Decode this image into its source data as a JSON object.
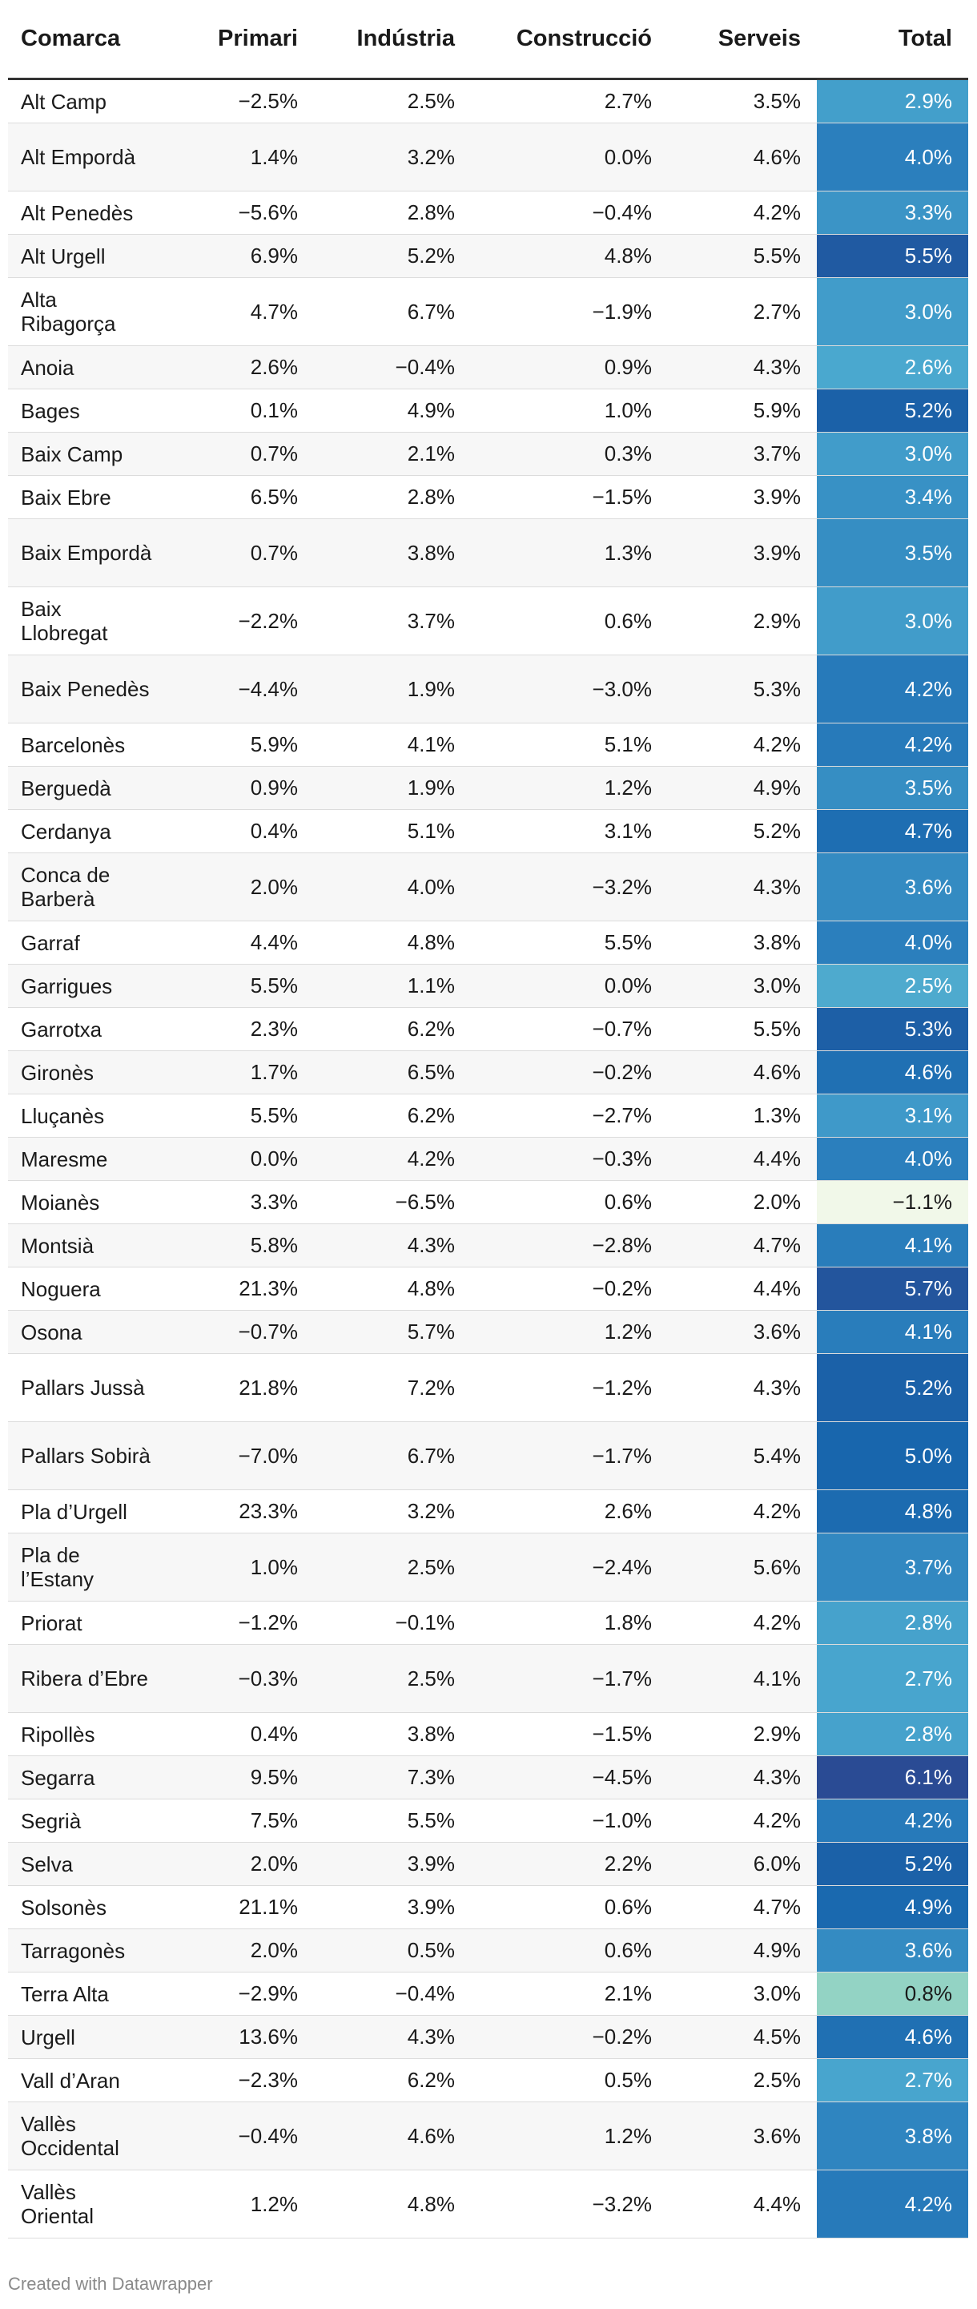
{
  "chart_data": {
    "type": "table",
    "columns": [
      "Comarca",
      "Primari",
      "Indústria",
      "Construcció",
      "Serveis",
      "Total"
    ],
    "rows": [
      {
        "comarca": "Alt Camp",
        "primari": "−2.5%",
        "industria": "2.5%",
        "construccio": "2.7%",
        "serveis": "3.5%",
        "total": "2.9%",
        "total_value": 2.9
      },
      {
        "comarca": "Alt Empordà",
        "primari": "1.4%",
        "industria": "3.2%",
        "construccio": "0.0%",
        "serveis": "4.6%",
        "total": "4.0%",
        "total_value": 4.0
      },
      {
        "comarca": "Alt Penedès",
        "primari": "−5.6%",
        "industria": "2.8%",
        "construccio": "−0.4%",
        "serveis": "4.2%",
        "total": "3.3%",
        "total_value": 3.3
      },
      {
        "comarca": "Alt Urgell",
        "primari": "6.9%",
        "industria": "5.2%",
        "construccio": "4.8%",
        "serveis": "5.5%",
        "total": "5.5%",
        "total_value": 5.5
      },
      {
        "comarca": "Alta Ribagorça",
        "primari": "4.7%",
        "industria": "6.7%",
        "construccio": "−1.9%",
        "serveis": "2.7%",
        "total": "3.0%",
        "total_value": 3.0
      },
      {
        "comarca": "Anoia",
        "primari": "2.6%",
        "industria": "−0.4%",
        "construccio": "0.9%",
        "serveis": "4.3%",
        "total": "2.6%",
        "total_value": 2.6
      },
      {
        "comarca": "Bages",
        "primari": "0.1%",
        "industria": "4.9%",
        "construccio": "1.0%",
        "serveis": "5.9%",
        "total": "5.2%",
        "total_value": 5.2
      },
      {
        "comarca": "Baix Camp",
        "primari": "0.7%",
        "industria": "2.1%",
        "construccio": "0.3%",
        "serveis": "3.7%",
        "total": "3.0%",
        "total_value": 3.0
      },
      {
        "comarca": "Baix Ebre",
        "primari": "6.5%",
        "industria": "2.8%",
        "construccio": "−1.5%",
        "serveis": "3.9%",
        "total": "3.4%",
        "total_value": 3.4
      },
      {
        "comarca": "Baix Empordà",
        "primari": "0.7%",
        "industria": "3.8%",
        "construccio": "1.3%",
        "serveis": "3.9%",
        "total": "3.5%",
        "total_value": 3.5
      },
      {
        "comarca": "Baix Llobregat",
        "primari": "−2.2%",
        "industria": "3.7%",
        "construccio": "0.6%",
        "serveis": "2.9%",
        "total": "3.0%",
        "total_value": 3.0
      },
      {
        "comarca": "Baix Penedès",
        "primari": "−4.4%",
        "industria": "1.9%",
        "construccio": "−3.0%",
        "serveis": "5.3%",
        "total": "4.2%",
        "total_value": 4.2
      },
      {
        "comarca": "Barcelonès",
        "primari": "5.9%",
        "industria": "4.1%",
        "construccio": "5.1%",
        "serveis": "4.2%",
        "total": "4.2%",
        "total_value": 4.2
      },
      {
        "comarca": "Berguedà",
        "primari": "0.9%",
        "industria": "1.9%",
        "construccio": "1.2%",
        "serveis": "4.9%",
        "total": "3.5%",
        "total_value": 3.5
      },
      {
        "comarca": "Cerdanya",
        "primari": "0.4%",
        "industria": "5.1%",
        "construccio": "3.1%",
        "serveis": "5.2%",
        "total": "4.7%",
        "total_value": 4.7
      },
      {
        "comarca": "Conca de Barberà",
        "primari": "2.0%",
        "industria": "4.0%",
        "construccio": "−3.2%",
        "serveis": "4.3%",
        "total": "3.6%",
        "total_value": 3.6
      },
      {
        "comarca": "Garraf",
        "primari": "4.4%",
        "industria": "4.8%",
        "construccio": "5.5%",
        "serveis": "3.8%",
        "total": "4.0%",
        "total_value": 4.0
      },
      {
        "comarca": "Garrigues",
        "primari": "5.5%",
        "industria": "1.1%",
        "construccio": "0.0%",
        "serveis": "3.0%",
        "total": "2.5%",
        "total_value": 2.5
      },
      {
        "comarca": "Garrotxa",
        "primari": "2.3%",
        "industria": "6.2%",
        "construccio": "−0.7%",
        "serveis": "5.5%",
        "total": "5.3%",
        "total_value": 5.3
      },
      {
        "comarca": "Gironès",
        "primari": "1.7%",
        "industria": "6.5%",
        "construccio": "−0.2%",
        "serveis": "4.6%",
        "total": "4.6%",
        "total_value": 4.6
      },
      {
        "comarca": "Lluçanès",
        "primari": "5.5%",
        "industria": "6.2%",
        "construccio": "−2.7%",
        "serveis": "1.3%",
        "total": "3.1%",
        "total_value": 3.1
      },
      {
        "comarca": "Maresme",
        "primari": "0.0%",
        "industria": "4.2%",
        "construccio": "−0.3%",
        "serveis": "4.4%",
        "total": "4.0%",
        "total_value": 4.0
      },
      {
        "comarca": "Moianès",
        "primari": "3.3%",
        "industria": "−6.5%",
        "construccio": "0.6%",
        "serveis": "2.0%",
        "total": "−1.1%",
        "total_value": -1.1
      },
      {
        "comarca": "Montsià",
        "primari": "5.8%",
        "industria": "4.3%",
        "construccio": "−2.8%",
        "serveis": "4.7%",
        "total": "4.1%",
        "total_value": 4.1
      },
      {
        "comarca": "Noguera",
        "primari": "21.3%",
        "industria": "4.8%",
        "construccio": "−0.2%",
        "serveis": "4.4%",
        "total": "5.7%",
        "total_value": 5.7
      },
      {
        "comarca": "Osona",
        "primari": "−0.7%",
        "industria": "5.7%",
        "construccio": "1.2%",
        "serveis": "3.6%",
        "total": "4.1%",
        "total_value": 4.1
      },
      {
        "comarca": "Pallars Jussà",
        "primari": "21.8%",
        "industria": "7.2%",
        "construccio": "−1.2%",
        "serveis": "4.3%",
        "total": "5.2%",
        "total_value": 5.2
      },
      {
        "comarca": "Pallars Sobirà",
        "primari": "−7.0%",
        "industria": "6.7%",
        "construccio": "−1.7%",
        "serveis": "5.4%",
        "total": "5.0%",
        "total_value": 5.0
      },
      {
        "comarca": "Pla d’Urgell",
        "primari": "23.3%",
        "industria": "3.2%",
        "construccio": "2.6%",
        "serveis": "4.2%",
        "total": "4.8%",
        "total_value": 4.8
      },
      {
        "comarca": "Pla de l’Estany",
        "primari": "1.0%",
        "industria": "2.5%",
        "construccio": "−2.4%",
        "serveis": "5.6%",
        "total": "3.7%",
        "total_value": 3.7
      },
      {
        "comarca": "Priorat",
        "primari": "−1.2%",
        "industria": "−0.1%",
        "construccio": "1.8%",
        "serveis": "4.2%",
        "total": "2.8%",
        "total_value": 2.8
      },
      {
        "comarca": "Ribera d’Ebre",
        "primari": "−0.3%",
        "industria": "2.5%",
        "construccio": "−1.7%",
        "serveis": "4.1%",
        "total": "2.7%",
        "total_value": 2.7
      },
      {
        "comarca": "Ripollès",
        "primari": "0.4%",
        "industria": "3.8%",
        "construccio": "−1.5%",
        "serveis": "2.9%",
        "total": "2.8%",
        "total_value": 2.8
      },
      {
        "comarca": "Segarra",
        "primari": "9.5%",
        "industria": "7.3%",
        "construccio": "−4.5%",
        "serveis": "4.3%",
        "total": "6.1%",
        "total_value": 6.1
      },
      {
        "comarca": "Segrià",
        "primari": "7.5%",
        "industria": "5.5%",
        "construccio": "−1.0%",
        "serveis": "4.2%",
        "total": "4.2%",
        "total_value": 4.2
      },
      {
        "comarca": "Selva",
        "primari": "2.0%",
        "industria": "3.9%",
        "construccio": "2.2%",
        "serveis": "6.0%",
        "total": "5.2%",
        "total_value": 5.2
      },
      {
        "comarca": "Solsonès",
        "primari": "21.1%",
        "industria": "3.9%",
        "construccio": "0.6%",
        "serveis": "4.7%",
        "total": "4.9%",
        "total_value": 4.9
      },
      {
        "comarca": "Tarragonès",
        "primari": "2.0%",
        "industria": "0.5%",
        "construccio": "0.6%",
        "serveis": "4.9%",
        "total": "3.6%",
        "total_value": 3.6
      },
      {
        "comarca": "Terra Alta",
        "primari": "−2.9%",
        "industria": "−0.4%",
        "construccio": "2.1%",
        "serveis": "3.0%",
        "total": "0.8%",
        "total_value": 0.8
      },
      {
        "comarca": "Urgell",
        "primari": "13.6%",
        "industria": "4.3%",
        "construccio": "−0.2%",
        "serveis": "4.5%",
        "total": "4.6%",
        "total_value": 4.6
      },
      {
        "comarca": "Vall d’Aran",
        "primari": "−2.3%",
        "industria": "6.2%",
        "construccio": "0.5%",
        "serveis": "2.5%",
        "total": "2.7%",
        "total_value": 2.7
      },
      {
        "comarca": "Vallès Occidental",
        "primari": "−0.4%",
        "industria": "4.6%",
        "construccio": "1.2%",
        "serveis": "3.6%",
        "total": "3.8%",
        "total_value": 3.8
      },
      {
        "comarca": "Vallès Oriental",
        "primari": "1.2%",
        "industria": "4.8%",
        "construccio": "−3.2%",
        "serveis": "4.4%",
        "total": "4.2%",
        "total_value": 4.2
      }
    ],
    "total_color_scale": {
      "domain": [
        -1.1,
        0.8,
        2.6,
        4.0,
        5.0,
        6.1
      ],
      "colors": [
        "#f1f8e9",
        "#93d3c4",
        "#4aa8cf",
        "#2b7fbd",
        "#1866ad",
        "#2a4b94"
      ]
    }
  },
  "footer": "Created with Datawrapper"
}
